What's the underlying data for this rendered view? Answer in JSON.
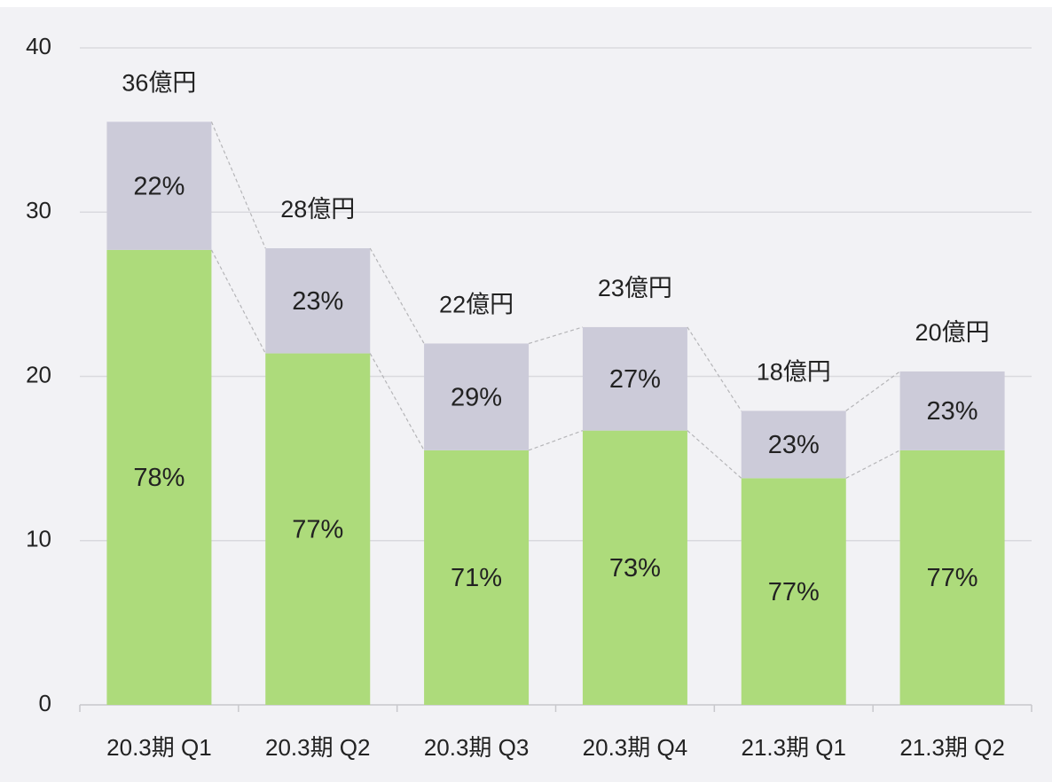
{
  "chart_data": {
    "type": "stacked_bar",
    "categories": [
      "20.3期 Q1",
      "20.3期 Q2",
      "20.3期 Q3",
      "20.3期 Q4",
      "21.3期 Q1",
      "21.3期 Q2"
    ],
    "series": [
      {
        "color": "#addb7b",
        "values": [
          27.7,
          21.4,
          15.5,
          16.7,
          13.8,
          15.5
        ],
        "share_labels": [
          "78%",
          "77%",
          "71%",
          "73%",
          "77%",
          "77%"
        ]
      },
      {
        "color": "#cccbd9",
        "values": [
          7.8,
          6.4,
          6.5,
          6.3,
          4.1,
          4.8
        ],
        "share_labels": [
          "22%",
          "23%",
          "29%",
          "27%",
          "23%",
          "23%"
        ]
      }
    ],
    "total_labels": [
      "36億円",
      "28億円",
      "22億円",
      "23億円",
      "18億円",
      "20億円"
    ],
    "ylim": [
      0,
      40
    ],
    "yticks": [
      0,
      10,
      20,
      30,
      40
    ],
    "grid": true
  }
}
